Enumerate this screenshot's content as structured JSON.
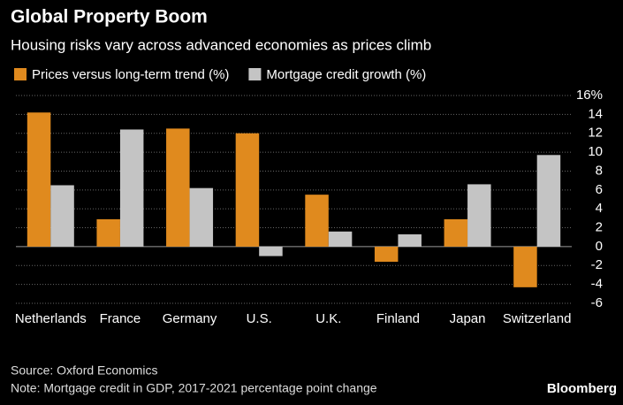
{
  "chart_data": {
    "type": "bar",
    "title": "Global Property Boom",
    "subtitle": "Housing risks vary across advanced economies as prices climb",
    "categories": [
      "Netherlands",
      "France",
      "Germany",
      "U.S.",
      "U.K.",
      "Finland",
      "Japan",
      "Switzerland"
    ],
    "series": [
      {
        "name": "Prices versus long-term trend (%)",
        "color": "#e08a1e",
        "values": [
          14.2,
          2.9,
          12.5,
          12.0,
          5.5,
          -1.6,
          2.9,
          -4.3
        ]
      },
      {
        "name": "Mortgage credit growth (%)",
        "color": "#c4c4c4",
        "values": [
          6.5,
          12.4,
          6.2,
          -1.0,
          1.6,
          1.3,
          6.6,
          9.7
        ]
      }
    ],
    "ylim": [
      -6,
      16
    ],
    "yticks": [
      -6,
      -4,
      -2,
      0,
      2,
      4,
      6,
      8,
      10,
      12,
      14,
      {
        "value": 16,
        "label": "16%"
      }
    ],
    "grid": true,
    "source": "Source: Oxford Economics",
    "note": "Note: Mortgage credit in GDP, 2017-2021 percentage point change",
    "brand": "Bloomberg"
  }
}
